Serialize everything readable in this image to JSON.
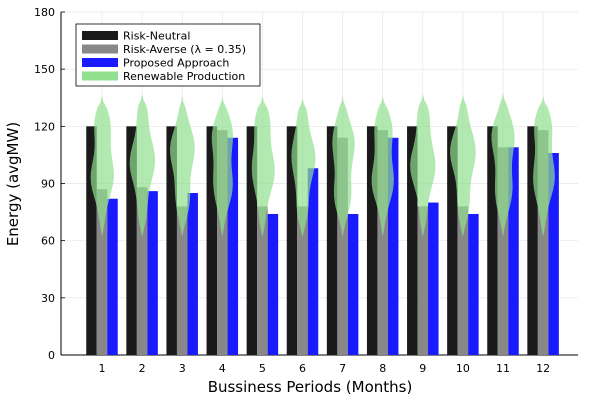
{
  "chart_data": {
    "type": "bar",
    "title": "",
    "xlabel": "Bussiness Periods (Months)",
    "ylabel": "Energy (avgMW)",
    "categories": [
      "1",
      "2",
      "3",
      "4",
      "5",
      "6",
      "7",
      "8",
      "9",
      "10",
      "11",
      "12"
    ],
    "ylim": [
      0,
      180
    ],
    "yticks": [
      0,
      30,
      60,
      90,
      120,
      150,
      180
    ],
    "grid": true,
    "legend_position": "top-left",
    "series": [
      {
        "name": "Risk-Neutral",
        "color": "#1a1a1a",
        "values": [
          120,
          120,
          120,
          120,
          120,
          120,
          120,
          120,
          120,
          120,
          120,
          120
        ]
      },
      {
        "name": "Risk-Averse (λ = 0.35)",
        "color": "#888888",
        "values": [
          87,
          88,
          78,
          118,
          78,
          78,
          114,
          118,
          78,
          78,
          109,
          118
        ]
      },
      {
        "name": "Proposed Approach",
        "color": "#1a1aff",
        "values": [
          82,
          86,
          85,
          114,
          74,
          98,
          74,
          114,
          80,
          74,
          109,
          106
        ]
      }
    ],
    "violin": {
      "name": "Renewable Production",
      "color": "#90e090",
      "min": [
        62,
        62,
        62,
        62,
        62,
        62,
        62,
        62,
        62,
        62,
        62,
        62
      ],
      "max": [
        136,
        137,
        136,
        136,
        136,
        135,
        136,
        136,
        137,
        137,
        138,
        136
      ],
      "mid": [
        105,
        104,
        106,
        104,
        105,
        104,
        105,
        103,
        104,
        105,
        104,
        104
      ]
    }
  }
}
